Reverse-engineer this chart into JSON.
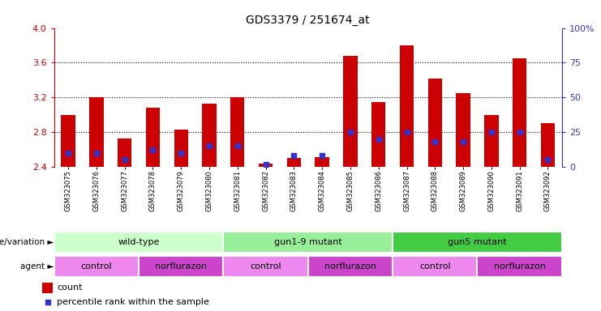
{
  "title": "GDS3379 / 251674_at",
  "samples": [
    "GSM323075",
    "GSM323076",
    "GSM323077",
    "GSM323078",
    "GSM323079",
    "GSM323080",
    "GSM323081",
    "GSM323082",
    "GSM323083",
    "GSM323084",
    "GSM323085",
    "GSM323086",
    "GSM323087",
    "GSM323088",
    "GSM323089",
    "GSM323090",
    "GSM323091",
    "GSM323092"
  ],
  "count_values": [
    3.0,
    3.2,
    2.73,
    3.08,
    2.83,
    3.13,
    3.2,
    2.44,
    2.5,
    2.51,
    3.68,
    3.15,
    3.8,
    3.42,
    3.25,
    3.0,
    3.65,
    2.9
  ],
  "percentile_values": [
    10,
    10,
    5,
    12,
    10,
    15,
    15,
    2,
    8,
    8,
    25,
    20,
    25,
    18,
    18,
    25,
    25,
    5
  ],
  "ymin": 2.4,
  "ymax": 4.0,
  "yticks": [
    2.4,
    2.8,
    3.2,
    3.6,
    4.0
  ],
  "right_yticks": [
    0,
    25,
    50,
    75,
    100
  ],
  "right_ytick_labels": [
    "0",
    "25",
    "50",
    "75",
    "100%"
  ],
  "bar_color": "#cc0000",
  "percentile_color": "#3333cc",
  "bar_width": 0.5,
  "genotype_groups": [
    {
      "label": "wild-type",
      "start": 0,
      "end": 6,
      "color": "#ccffcc"
    },
    {
      "label": "gun1-9 mutant",
      "start": 6,
      "end": 12,
      "color": "#99ee99"
    },
    {
      "label": "gun5 mutant",
      "start": 12,
      "end": 18,
      "color": "#44cc44"
    }
  ],
  "agent_groups": [
    {
      "label": "control",
      "start": 0,
      "end": 3,
      "color": "#ee88ee"
    },
    {
      "label": "norflurazon",
      "start": 3,
      "end": 6,
      "color": "#cc44cc"
    },
    {
      "label": "control",
      "start": 6,
      "end": 9,
      "color": "#ee88ee"
    },
    {
      "label": "norflurazon",
      "start": 9,
      "end": 12,
      "color": "#cc44cc"
    },
    {
      "label": "control",
      "start": 12,
      "end": 15,
      "color": "#ee88ee"
    },
    {
      "label": "norflurazon",
      "start": 15,
      "end": 18,
      "color": "#cc44cc"
    }
  ],
  "grid_color": "#000000",
  "left_ylabel_color": "#cc0000",
  "right_ylabel_color": "#3333cc",
  "bg_color": "#ffffff",
  "plot_bg_color": "#ffffff",
  "legend_count_color": "#cc0000",
  "legend_percentile_color": "#3333cc"
}
